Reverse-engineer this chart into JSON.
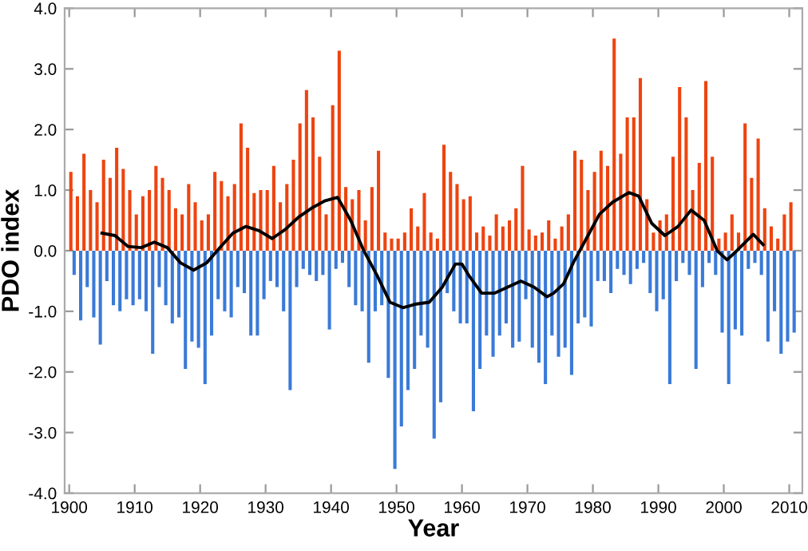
{
  "chart_data": {
    "type": "bar",
    "xlabel": "Year",
    "ylabel": "PDO index",
    "xlim": [
      1899.3,
      2012
    ],
    "xticks": [
      1900,
      1910,
      1920,
      1930,
      1940,
      1950,
      1960,
      1970,
      1980,
      1990,
      2000,
      2010
    ],
    "ylim": [
      -4,
      4
    ],
    "yticks": [
      {
        "value": -4,
        "label": "-4.0"
      },
      {
        "value": -3,
        "label": "-3.0"
      },
      {
        "value": -2,
        "label": "-2.0"
      },
      {
        "value": -1,
        "label": "-1.0"
      },
      {
        "value": 0,
        "label": "0.0"
      },
      {
        "value": 1,
        "label": "1.0"
      },
      {
        "value": 2,
        "label": "2.0"
      },
      {
        "value": 3,
        "label": "3.0"
      },
      {
        "value": 4,
        "label": "4.0"
      }
    ],
    "grid": false,
    "legend": false,
    "series": [
      {
        "color": "#ee4410",
        "x": [
          1900.25,
          1901.25,
          1902.25,
          1903.25,
          1904.25,
          1905.25,
          1906.25,
          1907.25,
          1908.25,
          1909.25,
          1910.25,
          1911.25,
          1912.25,
          1913.25,
          1914.25,
          1915.25,
          1916.25,
          1917.25,
          1918.25,
          1919.25,
          1920.25,
          1921.25,
          1922.25,
          1923.25,
          1924.25,
          1925.25,
          1926.25,
          1927.25,
          1928.25,
          1929.25,
          1930.25,
          1931.25,
          1932.25,
          1933.25,
          1934.25,
          1935.25,
          1936.25,
          1937.25,
          1938.25,
          1939.25,
          1940.25,
          1941.25,
          1942.25,
          1943.25,
          1944.25,
          1945.25,
          1946.25,
          1947.25,
          1948.25,
          1949.25,
          1950.25,
          1951.25,
          1952.25,
          1953.25,
          1954.25,
          1955.25,
          1956.25,
          1957.25,
          1958.25,
          1959.25,
          1960.25,
          1961.25,
          1962.25,
          1963.25,
          1964.25,
          1965.25,
          1966.25,
          1967.25,
          1968.25,
          1969.25,
          1970.25,
          1971.25,
          1972.25,
          1973.25,
          1974.25,
          1975.25,
          1976.25,
          1977.25,
          1978.25,
          1979.25,
          1980.25,
          1981.25,
          1982.25,
          1983.25,
          1984.25,
          1985.25,
          1986.25,
          1987.25,
          1988.25,
          1989.25,
          1990.25,
          1991.25,
          1992.25,
          1993.25,
          1994.25,
          1995.25,
          1996.25,
          1997.25,
          1998.25,
          1999.25,
          2000.25,
          2001.25,
          2002.25,
          2003.25,
          2004.25,
          2005.25,
          2006.25,
          2007.25,
          2008.25,
          2009.25,
          2010.25
        ],
        "values": [
          1.3,
          0.9,
          1.6,
          1.0,
          0.8,
          1.5,
          1.2,
          1.7,
          1.35,
          1.0,
          0.6,
          0.9,
          1.0,
          1.4,
          1.2,
          1.0,
          0.7,
          0.6,
          1.1,
          0.8,
          0.5,
          0.6,
          1.3,
          1.15,
          0.9,
          1.1,
          2.1,
          1.7,
          0.95,
          1.0,
          1.0,
          1.4,
          0.8,
          1.1,
          1.5,
          2.1,
          2.65,
          2.2,
          1.55,
          0.6,
          2.4,
          3.3,
          1.05,
          0.85,
          1.0,
          0.5,
          1.05,
          1.65,
          0.3,
          0.2,
          0.2,
          0.3,
          0.7,
          0.4,
          0.95,
          0.3,
          0.2,
          1.75,
          1.3,
          1.1,
          0.85,
          0.9,
          0.3,
          0.4,
          0.25,
          0.6,
          0.4,
          0.5,
          0.7,
          1.4,
          0.35,
          0.25,
          0.3,
          0.5,
          0.2,
          0.4,
          0.6,
          1.65,
          1.5,
          1.0,
          1.3,
          1.65,
          1.4,
          3.5,
          1.6,
          2.2,
          2.2,
          2.85,
          0.85,
          0.3,
          0.5,
          0.6,
          1.55,
          2.7,
          2.2,
          1.0,
          1.45,
          2.8,
          1.55,
          0.2,
          0.3,
          0.6,
          0.3,
          2.1,
          1.2,
          1.85,
          0.7,
          0.4,
          0.2,
          0.6,
          0.8
        ]
      },
      {
        "color": "#3a7ad8",
        "x": [
          1900.75,
          1901.75,
          1902.75,
          1903.75,
          1904.75,
          1905.75,
          1906.75,
          1907.75,
          1908.75,
          1909.75,
          1910.75,
          1911.75,
          1912.75,
          1913.75,
          1914.75,
          1915.75,
          1916.75,
          1917.75,
          1918.75,
          1919.75,
          1920.75,
          1921.75,
          1922.75,
          1923.75,
          1924.75,
          1925.75,
          1926.75,
          1927.75,
          1928.75,
          1929.75,
          1930.75,
          1931.75,
          1932.75,
          1933.75,
          1934.75,
          1935.75,
          1936.75,
          1937.75,
          1938.75,
          1939.75,
          1940.75,
          1941.75,
          1942.75,
          1943.75,
          1944.75,
          1945.75,
          1946.75,
          1947.75,
          1948.75,
          1949.75,
          1950.75,
          1951.75,
          1952.75,
          1953.75,
          1954.75,
          1955.75,
          1956.75,
          1957.75,
          1958.75,
          1959.75,
          1960.75,
          1961.75,
          1962.75,
          1963.75,
          1964.75,
          1965.75,
          1966.75,
          1967.75,
          1968.75,
          1969.75,
          1970.75,
          1971.75,
          1972.75,
          1973.75,
          1974.75,
          1975.75,
          1976.75,
          1977.75,
          1978.75,
          1979.75,
          1980.75,
          1981.75,
          1982.75,
          1983.75,
          1984.75,
          1985.75,
          1986.75,
          1987.75,
          1988.75,
          1989.75,
          1990.75,
          1991.75,
          1992.75,
          1993.75,
          1994.75,
          1995.75,
          1996.75,
          1997.75,
          1998.75,
          1999.75,
          2000.75,
          2001.75,
          2002.75,
          2003.75,
          2004.75,
          2005.75,
          2006.75,
          2007.75,
          2008.75,
          2009.75,
          2010.75
        ],
        "values": [
          -0.4,
          -1.15,
          -0.6,
          -1.1,
          -1.55,
          -0.5,
          -0.9,
          -1.0,
          -0.8,
          -0.9,
          -0.8,
          -1.0,
          -1.7,
          -0.6,
          -0.9,
          -1.2,
          -1.1,
          -1.95,
          -1.5,
          -1.6,
          -2.2,
          -1.4,
          -0.8,
          -1.0,
          -1.1,
          -0.6,
          -0.7,
          -1.4,
          -1.4,
          -0.8,
          -0.5,
          -0.6,
          -1.0,
          -2.3,
          -0.6,
          -0.3,
          -0.4,
          -0.5,
          -0.4,
          -1.3,
          -0.3,
          -0.2,
          -0.6,
          -0.9,
          -1.0,
          -1.85,
          -1.0,
          -0.9,
          -2.1,
          -3.6,
          -2.9,
          -2.3,
          -1.95,
          -1.4,
          -1.6,
          -3.1,
          -2.5,
          -0.7,
          -1.0,
          -1.2,
          -1.2,
          -2.65,
          -1.95,
          -1.4,
          -1.75,
          -1.4,
          -1.2,
          -1.6,
          -1.5,
          -0.8,
          -1.6,
          -1.85,
          -2.2,
          -1.4,
          -1.75,
          -1.6,
          -2.05,
          -1.2,
          -1.1,
          -1.25,
          -0.5,
          -0.5,
          -0.7,
          -0.3,
          -0.4,
          -0.55,
          -0.3,
          -0.2,
          -0.7,
          -1.0,
          -0.8,
          -2.2,
          -0.5,
          -0.2,
          -0.4,
          -1.95,
          -0.6,
          -0.2,
          -0.4,
          -1.35,
          -2.2,
          -1.3,
          -1.4,
          -0.3,
          -0.2,
          -0.4,
          -1.5,
          -1.0,
          -1.7,
          -1.5,
          -1.35
        ]
      },
      {
        "type": "line",
        "color": "#000000",
        "x": [
          1905,
          1907,
          1909,
          1911,
          1913,
          1915,
          1917,
          1919,
          1921,
          1923,
          1925,
          1927,
          1929,
          1931,
          1933,
          1935,
          1937,
          1939,
          1941,
          1943,
          1945,
          1947,
          1949,
          1951,
          1953,
          1955,
          1957,
          1959,
          1960,
          1961,
          1963,
          1965,
          1967,
          1969,
          1971,
          1973,
          1974,
          1975.5,
          1977,
          1979,
          1981,
          1983,
          1985.5,
          1987,
          1989,
          1991,
          1993,
          1995,
          1997,
          1999,
          2000.5,
          2002,
          2004.5,
          2006
        ],
        "values": [
          0.29,
          0.25,
          0.07,
          0.05,
          0.14,
          0.05,
          -0.2,
          -0.32,
          -0.2,
          0.05,
          0.29,
          0.4,
          0.33,
          0.2,
          0.35,
          0.55,
          0.7,
          0.82,
          0.88,
          0.5,
          0.0,
          -0.4,
          -0.85,
          -0.94,
          -0.88,
          -0.85,
          -0.6,
          -0.22,
          -0.22,
          -0.4,
          -0.7,
          -0.7,
          -0.6,
          -0.5,
          -0.6,
          -0.76,
          -0.7,
          -0.55,
          -0.2,
          0.2,
          0.6,
          0.8,
          0.96,
          0.9,
          0.45,
          0.25,
          0.4,
          0.67,
          0.5,
          0.0,
          -0.15,
          0.0,
          0.27,
          0.1
        ]
      }
    ]
  }
}
